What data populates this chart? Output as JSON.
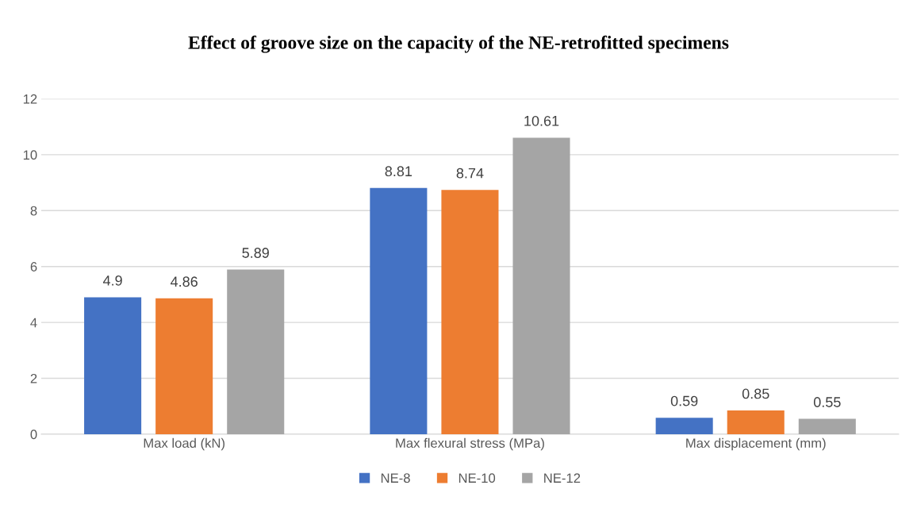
{
  "chart_data": {
    "type": "bar",
    "title": "Effect of groove size on the capacity of the NE-retrofitted specimens",
    "categories": [
      "Max load (kN)",
      "Max flexural stress (MPa)",
      "Max displacement (mm)"
    ],
    "series": [
      {
        "name": "NE-8",
        "color": "#4472c4",
        "values": [
          4.9,
          8.81,
          0.59
        ]
      },
      {
        "name": "NE-10",
        "color": "#ed7d31",
        "values": [
          4.86,
          8.74,
          0.85
        ]
      },
      {
        "name": "NE-12",
        "color": "#a5a5a5",
        "values": [
          5.89,
          10.61,
          0.55
        ]
      }
    ],
    "ylim": [
      0,
      12
    ],
    "yticks": [
      0,
      2,
      4,
      6,
      8,
      10,
      12
    ],
    "grid": "y",
    "legend": "bottom",
    "data_labels": true
  }
}
